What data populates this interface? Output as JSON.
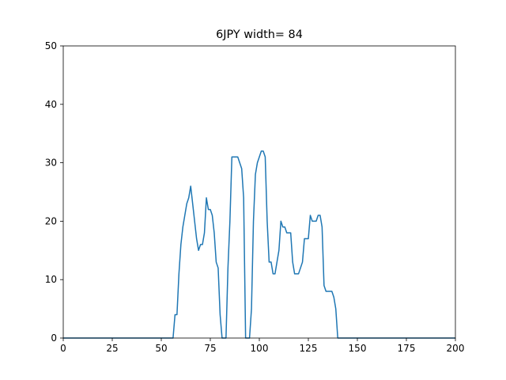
{
  "chart_data": {
    "type": "line",
    "title": "6JPY width= 84",
    "xlabel": "",
    "ylabel": "",
    "xlim": [
      0,
      200
    ],
    "ylim": [
      0,
      50
    ],
    "xticks": [
      0,
      25,
      50,
      75,
      100,
      125,
      150,
      175,
      200
    ],
    "yticks": [
      0,
      10,
      20,
      30,
      40,
      50
    ],
    "grid": false,
    "series": [
      {
        "color": "#1f77b4",
        "points": [
          [
            0,
            0
          ],
          [
            56,
            0
          ],
          [
            57,
            4
          ],
          [
            58,
            4
          ],
          [
            59,
            11
          ],
          [
            60,
            16
          ],
          [
            61,
            19
          ],
          [
            62,
            21
          ],
          [
            63,
            23
          ],
          [
            64,
            24
          ],
          [
            65,
            26
          ],
          [
            66,
            23
          ],
          [
            67,
            20
          ],
          [
            68,
            17
          ],
          [
            69,
            15
          ],
          [
            70,
            16
          ],
          [
            71,
            16
          ],
          [
            72,
            18
          ],
          [
            73,
            24
          ],
          [
            74,
            22
          ],
          [
            75,
            22
          ],
          [
            76,
            21
          ],
          [
            77,
            18
          ],
          [
            78,
            13
          ],
          [
            79,
            12
          ],
          [
            80,
            4
          ],
          [
            81,
            0
          ],
          [
            82,
            0
          ],
          [
            83,
            0
          ],
          [
            84,
            12
          ],
          [
            85,
            20
          ],
          [
            86,
            31
          ],
          [
            87,
            31
          ],
          [
            88,
            31
          ],
          [
            89,
            31
          ],
          [
            90,
            30
          ],
          [
            91,
            29
          ],
          [
            92,
            24
          ],
          [
            93,
            0
          ],
          [
            94,
            0
          ],
          [
            95,
            0
          ],
          [
            96,
            5
          ],
          [
            97,
            20
          ],
          [
            98,
            28
          ],
          [
            99,
            30
          ],
          [
            100,
            31
          ],
          [
            101,
            32
          ],
          [
            102,
            32
          ],
          [
            103,
            31
          ],
          [
            104,
            20
          ],
          [
            105,
            13
          ],
          [
            106,
            13
          ],
          [
            107,
            11
          ],
          [
            108,
            11
          ],
          [
            109,
            13
          ],
          [
            110,
            15
          ],
          [
            111,
            20
          ],
          [
            112,
            19
          ],
          [
            113,
            19
          ],
          [
            114,
            18
          ],
          [
            115,
            18
          ],
          [
            116,
            18
          ],
          [
            117,
            13
          ],
          [
            118,
            11
          ],
          [
            119,
            11
          ],
          [
            120,
            11
          ],
          [
            121,
            12
          ],
          [
            122,
            13
          ],
          [
            123,
            17
          ],
          [
            124,
            17
          ],
          [
            125,
            17
          ],
          [
            126,
            21
          ],
          [
            127,
            20
          ],
          [
            128,
            20
          ],
          [
            129,
            20
          ],
          [
            130,
            21
          ],
          [
            131,
            21
          ],
          [
            132,
            19
          ],
          [
            133,
            9
          ],
          [
            134,
            8
          ],
          [
            135,
            8
          ],
          [
            136,
            8
          ],
          [
            137,
            8
          ],
          [
            138,
            7
          ],
          [
            139,
            5
          ],
          [
            140,
            0
          ],
          [
            200,
            0
          ]
        ]
      }
    ]
  }
}
